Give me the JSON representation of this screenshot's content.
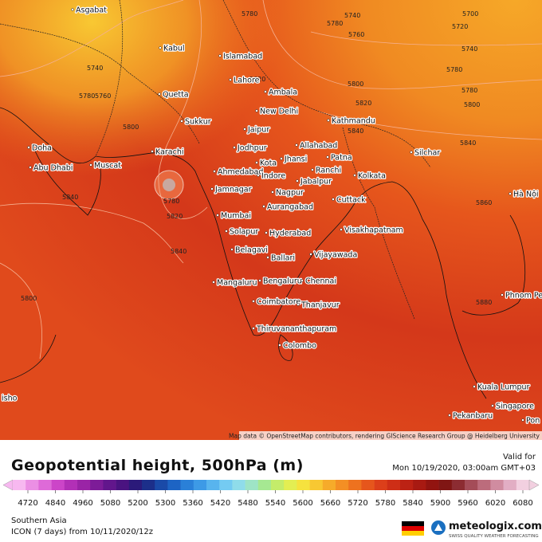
{
  "map": {
    "cities": [
      "Asgabat",
      "Kabul",
      "Islamabad",
      "Lahore",
      "Ambala",
      "Quetta",
      "New Delhi",
      "Sukkur",
      "Kathmandu",
      "Jaipur",
      "Karachi",
      "Allahabad",
      "Jodhpur",
      "Patna",
      "Silchar",
      "Doha",
      "Jhansi",
      "Kota",
      "Ranchi",
      "Abu Dhabi",
      "Muscat",
      "Ahmedabad",
      "Indore",
      "Jabalpur",
      "Kolkata",
      "Jamnagar",
      "Nagpur",
      "Cuttack",
      "Hà Nội",
      "Mumbai",
      "Aurangabad",
      "Solapur",
      "Hyderabad",
      "Visakhapatnam",
      "Belagavi",
      "Ballari",
      "Vijayawada",
      "Mangaluru",
      "Bengaluru",
      "Chennai",
      "Phnom Penh",
      "Coimbatore",
      "Thanjavur",
      "Thiruvananthapuram",
      "Colombo",
      "Kuala Lumpur",
      "Singapore",
      "Pekanbaru",
      "isho",
      "Pon"
    ],
    "contour_labels": [
      5780,
      5740,
      5780,
      5700,
      5720,
      5760,
      5740,
      5780,
      5800,
      5820,
      5740,
      5780,
      5760,
      5800,
      5820,
      5780,
      5800,
      5840,
      5840,
      5780,
      5820,
      5840,
      5860,
      5800,
      5880,
      5840
    ],
    "attribution": "Map data © OpenStreetMap contributors, rendering GIScience Research Group @ Heidelberg University"
  },
  "legend": {
    "title": "Geopotential height, 500hPa (m)",
    "valid_label": "Valid for",
    "valid_time": "Mon 10/19/2020, 03:00am GMT+03",
    "ticks": [
      4720,
      4840,
      4960,
      5080,
      5200,
      5300,
      5360,
      5420,
      5480,
      5540,
      5600,
      5660,
      5720,
      5780,
      5840,
      5900,
      5960,
      6020,
      6080
    ],
    "colors": [
      "#f7b8f0",
      "#eb8fe4",
      "#de6ad8",
      "#cc45c8",
      "#b230b6",
      "#9a24a6",
      "#7d1c98",
      "#62168c",
      "#4a1380",
      "#2b1a7a",
      "#1c2f8a",
      "#1a4aa8",
      "#1d64c4",
      "#2a80d8",
      "#3d9ae6",
      "#58b4ee",
      "#74cbf2",
      "#8fdcea",
      "#9ee4c6",
      "#a6e892",
      "#c4ec6a",
      "#e3ee52",
      "#f6e23e",
      "#f8c832",
      "#f6ab2a",
      "#f48f24",
      "#ee721f",
      "#e6561c",
      "#dc3f1a",
      "#ce2e16",
      "#bc2214",
      "#a81a12",
      "#921410",
      "#801614",
      "#8c2c32",
      "#a44c58",
      "#bc6c7c",
      "#d08ca0",
      "#e2aec4",
      "#f2d0e0"
    ],
    "region": "Southern Asia",
    "model": "ICON (7 days) from 10/11/2020/12z",
    "brand": "meteologix.com",
    "tagline": "SWISS QUALITY WEATHER FORECASTING"
  }
}
